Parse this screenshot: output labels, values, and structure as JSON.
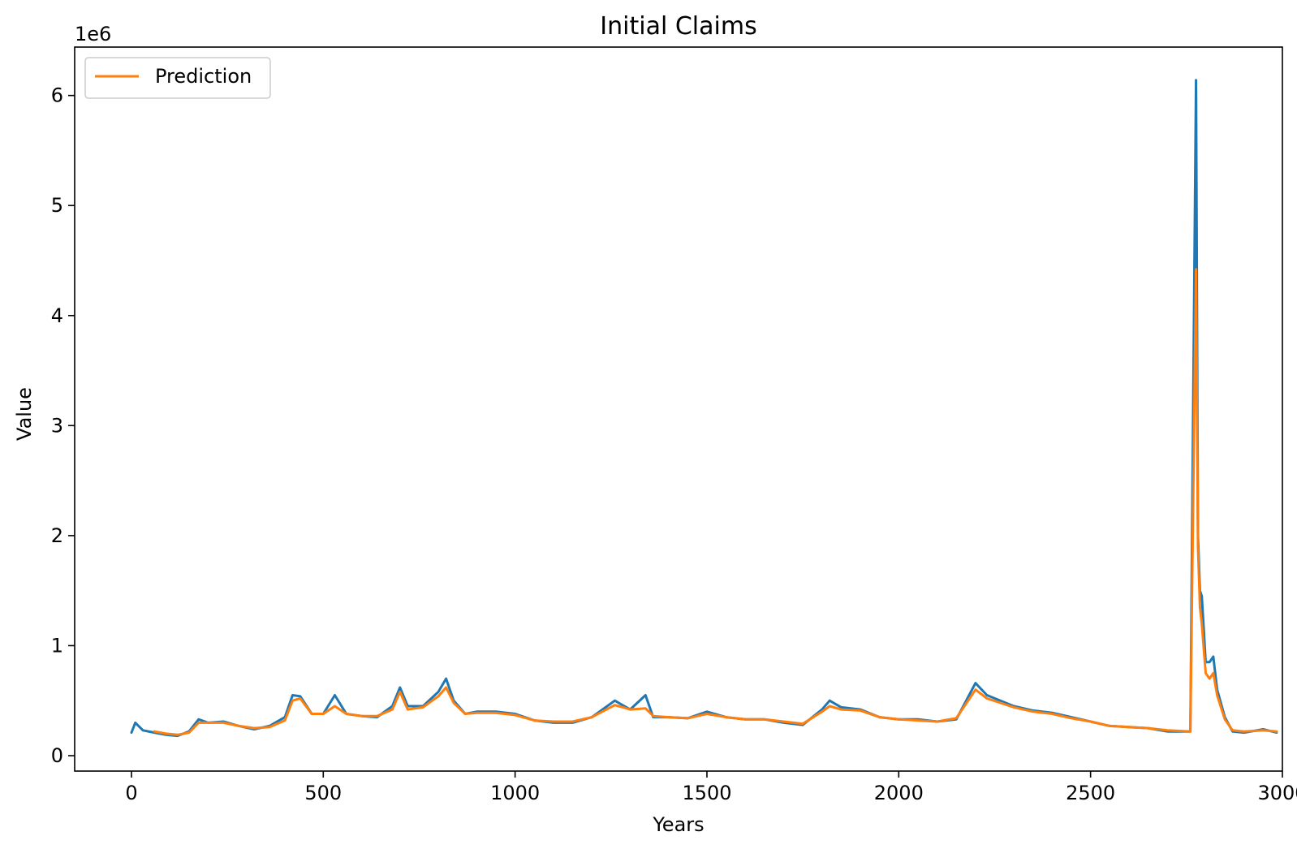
{
  "chart_data": {
    "type": "line",
    "title": "Initial Claims",
    "xlabel": "Years",
    "ylabel": "Value",
    "y_offset_label": "1e6",
    "xlim": [
      -148,
      3000
    ],
    "ylim": [
      -0.14,
      6.44
    ],
    "y_scale_multiplier": 1000000,
    "xticks": [
      0,
      500,
      1000,
      1500,
      2000,
      2500,
      3000
    ],
    "xtick_labels": [
      "0",
      "500",
      "1000",
      "1500",
      "2000",
      "2500",
      "3000"
    ],
    "yticks": [
      0,
      1,
      2,
      3,
      4,
      5,
      6
    ],
    "ytick_labels": [
      "0",
      "1",
      "2",
      "3",
      "4",
      "5",
      "6"
    ],
    "grid": false,
    "legend": {
      "position": "top-left",
      "entries": [
        "Prediction"
      ]
    },
    "series": [
      {
        "color": "#1f77b4",
        "x": [
          0,
          10,
          30,
          60,
          90,
          120,
          150,
          175,
          200,
          240,
          280,
          320,
          360,
          400,
          420,
          440,
          470,
          500,
          530,
          560,
          600,
          640,
          680,
          700,
          720,
          760,
          800,
          820,
          840,
          870,
          900,
          950,
          1000,
          1050,
          1100,
          1150,
          1200,
          1260,
          1300,
          1340,
          1360,
          1400,
          1450,
          1500,
          1550,
          1600,
          1650,
          1700,
          1750,
          1800,
          1820,
          1850,
          1900,
          1950,
          2000,
          2050,
          2100,
          2150,
          2200,
          2230,
          2300,
          2350,
          2400,
          2450,
          2500,
          2550,
          2600,
          2650,
          2700,
          2760,
          2775,
          2780,
          2785,
          2790,
          2800,
          2810,
          2820,
          2830,
          2850,
          2870,
          2900,
          2950,
          2985
        ],
        "values": [
          0.21,
          0.3,
          0.23,
          0.21,
          0.19,
          0.18,
          0.22,
          0.33,
          0.3,
          0.31,
          0.27,
          0.24,
          0.27,
          0.35,
          0.55,
          0.54,
          0.38,
          0.38,
          0.55,
          0.38,
          0.36,
          0.35,
          0.45,
          0.62,
          0.45,
          0.45,
          0.58,
          0.7,
          0.5,
          0.38,
          0.4,
          0.4,
          0.38,
          0.32,
          0.3,
          0.3,
          0.35,
          0.5,
          0.42,
          0.55,
          0.35,
          0.35,
          0.34,
          0.4,
          0.35,
          0.33,
          0.33,
          0.3,
          0.28,
          0.42,
          0.5,
          0.44,
          0.42,
          0.35,
          0.33,
          0.33,
          0.31,
          0.33,
          0.66,
          0.55,
          0.45,
          0.41,
          0.39,
          0.35,
          0.31,
          0.27,
          0.26,
          0.25,
          0.22,
          0.22,
          6.14,
          2.0,
          1.5,
          1.45,
          0.85,
          0.85,
          0.9,
          0.6,
          0.35,
          0.22,
          0.21,
          0.24,
          0.21
        ]
      },
      {
        "name": "Prediction",
        "color": "#ff7f0e",
        "x": [
          60,
          90,
          120,
          150,
          175,
          200,
          240,
          280,
          320,
          360,
          400,
          420,
          440,
          470,
          500,
          530,
          560,
          600,
          640,
          680,
          700,
          720,
          760,
          800,
          820,
          840,
          870,
          900,
          950,
          1000,
          1050,
          1100,
          1150,
          1200,
          1260,
          1300,
          1340,
          1360,
          1400,
          1450,
          1500,
          1550,
          1600,
          1650,
          1700,
          1750,
          1800,
          1820,
          1850,
          1900,
          1950,
          2000,
          2050,
          2100,
          2150,
          2200,
          2230,
          2300,
          2350,
          2400,
          2450,
          2500,
          2550,
          2600,
          2650,
          2700,
          2760,
          2775,
          2780,
          2785,
          2790,
          2800,
          2810,
          2820,
          2830,
          2850,
          2870,
          2900,
          2950,
          2985
        ],
        "values": [
          0.22,
          0.2,
          0.19,
          0.21,
          0.3,
          0.3,
          0.3,
          0.27,
          0.25,
          0.26,
          0.32,
          0.5,
          0.52,
          0.38,
          0.38,
          0.45,
          0.38,
          0.36,
          0.36,
          0.42,
          0.58,
          0.42,
          0.44,
          0.54,
          0.62,
          0.48,
          0.38,
          0.39,
          0.39,
          0.37,
          0.32,
          0.31,
          0.31,
          0.35,
          0.46,
          0.42,
          0.43,
          0.36,
          0.35,
          0.34,
          0.38,
          0.35,
          0.33,
          0.33,
          0.31,
          0.29,
          0.4,
          0.45,
          0.42,
          0.41,
          0.35,
          0.33,
          0.32,
          0.31,
          0.34,
          0.6,
          0.52,
          0.44,
          0.4,
          0.38,
          0.34,
          0.31,
          0.27,
          0.26,
          0.25,
          0.23,
          0.22,
          4.42,
          1.9,
          1.35,
          1.2,
          0.75,
          0.7,
          0.75,
          0.55,
          0.33,
          0.23,
          0.22,
          0.23,
          0.22
        ]
      }
    ]
  }
}
